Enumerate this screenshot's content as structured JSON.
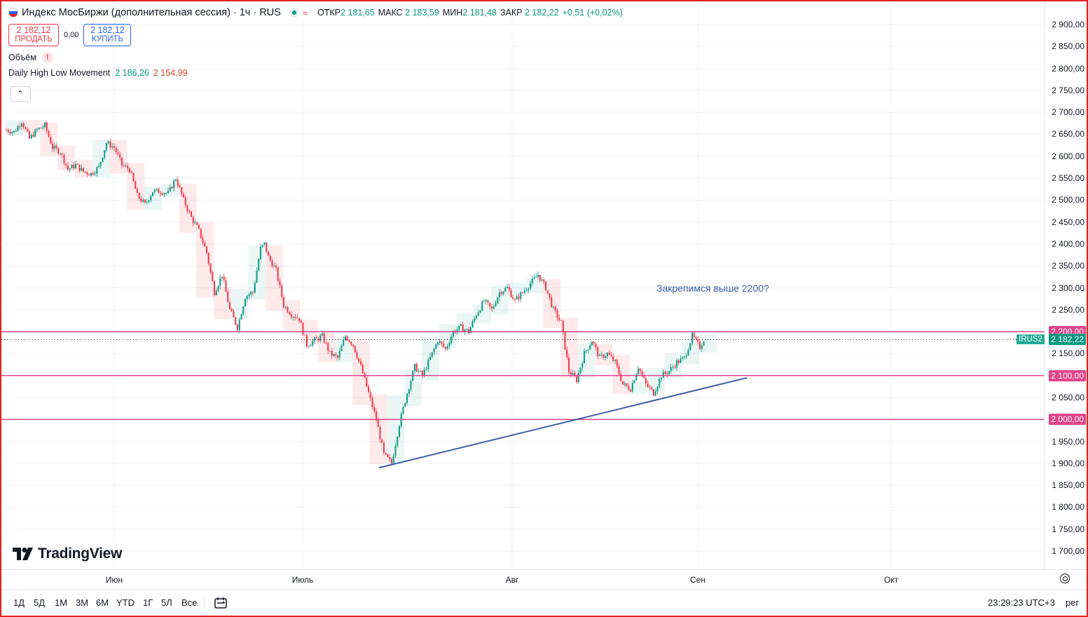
{
  "header": {
    "symbol_title": "Индекс МосБиржи (дополнительная сессия) · 1ч · RUS",
    "ohlc": {
      "open_label": "ОТКР",
      "open_value": "2 181,65",
      "high_label": "МАКС",
      "high_value": "2 183,59",
      "low_label": "МИН",
      "low_value": "2 181,48",
      "close_label": "ЗАКР",
      "close_value": "2 182,22",
      "change": "+0,51 (+0,02%)"
    },
    "sell_price": "2 182,12",
    "sell_label": "ПРОДАТЬ",
    "spread": "0,00",
    "buy_price": "2 182,12",
    "buy_label": "КУПИТЬ",
    "volume_label": "Объём",
    "indicator_name": "Daily High Low Movement",
    "indicator_high": "2 186,26",
    "indicator_low": "2 154,99"
  },
  "colors": {
    "up": "#089981",
    "down": "#f23645",
    "level": "#e0448a",
    "trendline": "#3d5fa8",
    "frame": "#e32222"
  },
  "price_axis": {
    "ticks": [
      "2 900,00",
      "2 850,00",
      "2 800,00",
      "2 750,00",
      "2 700,00",
      "2 650,00",
      "2 600,00",
      "2 550,00",
      "2 500,00",
      "2 450,00",
      "2 400,00",
      "2 350,00",
      "2 300,00",
      "2 250,00",
      "2 200,00",
      "2 150,00",
      "2 100,00",
      "2 050,00",
      "2 000,00",
      "1 950,00",
      "1 900,00",
      "1 850,00",
      "1 800,00",
      "1 750,00",
      "1 700,00"
    ],
    "symbol_tag": "IRUS2",
    "last_price": "2 182,22"
  },
  "levels": [
    "2 200,00",
    "2 100,00",
    "2 000,00"
  ],
  "annotation": "Закрепимся выше 2200?",
  "time_axis": {
    "months": [
      "Июн",
      "Июль",
      "Авг",
      "Сен",
      "Окт"
    ]
  },
  "toolbar": {
    "timeframes": [
      "1Д",
      "5Д",
      "1М",
      "3М",
      "6М",
      "YTD",
      "1Г",
      "5Л",
      "Все"
    ],
    "clock": "23:29:23 UTC+3",
    "extra": "рег"
  },
  "logo": "TradingView",
  "chart_data": {
    "type": "candlestick",
    "interval": "1ч",
    "ylim": [
      1675,
      2925
    ],
    "price_path": [
      [
        0,
        2660
      ],
      [
        4,
        2655
      ],
      [
        8,
        2680
      ],
      [
        12,
        2640
      ],
      [
        16,
        2660
      ],
      [
        20,
        2670
      ],
      [
        24,
        2620
      ],
      [
        28,
        2610
      ],
      [
        32,
        2570
      ],
      [
        36,
        2580
      ],
      [
        40,
        2565
      ],
      [
        44,
        2560
      ],
      [
        48,
        2575
      ],
      [
        52,
        2630
      ],
      [
        56,
        2620
      ],
      [
        60,
        2580
      ],
      [
        64,
        2570
      ],
      [
        68,
        2510
      ],
      [
        72,
        2490
      ],
      [
        76,
        2520
      ],
      [
        80,
        2520
      ],
      [
        84,
        2515
      ],
      [
        88,
        2550
      ],
      [
        92,
        2500
      ],
      [
        96,
        2460
      ],
      [
        100,
        2430
      ],
      [
        104,
        2380
      ],
      [
        108,
        2290
      ],
      [
        112,
        2330
      ],
      [
        116,
        2250
      ],
      [
        120,
        2210
      ],
      [
        124,
        2280
      ],
      [
        128,
        2290
      ],
      [
        132,
        2390
      ],
      [
        134,
        2400
      ],
      [
        136,
        2370
      ],
      [
        140,
        2340
      ],
      [
        144,
        2260
      ],
      [
        148,
        2240
      ],
      [
        152,
        2230
      ],
      [
        156,
        2170
      ],
      [
        160,
        2180
      ],
      [
        164,
        2190
      ],
      [
        168,
        2150
      ],
      [
        172,
        2140
      ],
      [
        176,
        2190
      ],
      [
        180,
        2170
      ],
      [
        184,
        2120
      ],
      [
        188,
        2060
      ],
      [
        192,
        2000
      ],
      [
        196,
        1920
      ],
      [
        200,
        1900
      ],
      [
        204,
        1990
      ],
      [
        208,
        2060
      ],
      [
        212,
        2120
      ],
      [
        216,
        2100
      ],
      [
        220,
        2140
      ],
      [
        224,
        2180
      ],
      [
        228,
        2160
      ],
      [
        232,
        2200
      ],
      [
        236,
        2210
      ],
      [
        240,
        2200
      ],
      [
        244,
        2240
      ],
      [
        248,
        2270
      ],
      [
        252,
        2250
      ],
      [
        256,
        2290
      ],
      [
        260,
        2300
      ],
      [
        264,
        2270
      ],
      [
        268,
        2290
      ],
      [
        272,
        2310
      ],
      [
        276,
        2330
      ],
      [
        280,
        2300
      ],
      [
        284,
        2250
      ],
      [
        288,
        2220
      ],
      [
        292,
        2110
      ],
      [
        296,
        2090
      ],
      [
        300,
        2150
      ],
      [
        304,
        2180
      ],
      [
        308,
        2140
      ],
      [
        312,
        2150
      ],
      [
        316,
        2130
      ],
      [
        320,
        2080
      ],
      [
        324,
        2070
      ],
      [
        328,
        2120
      ],
      [
        332,
        2080
      ],
      [
        336,
        2060
      ],
      [
        340,
        2100
      ],
      [
        344,
        2110
      ],
      [
        348,
        2130
      ],
      [
        352,
        2140
      ],
      [
        356,
        2190
      ],
      [
        360,
        2165
      ],
      [
        362,
        2182
      ]
    ],
    "trendline": [
      [
        200,
        1890
      ],
      [
        383,
        2095
      ]
    ],
    "horizontal_levels": [
      2200,
      2100,
      2000
    ],
    "last_price": 2182.22
  }
}
